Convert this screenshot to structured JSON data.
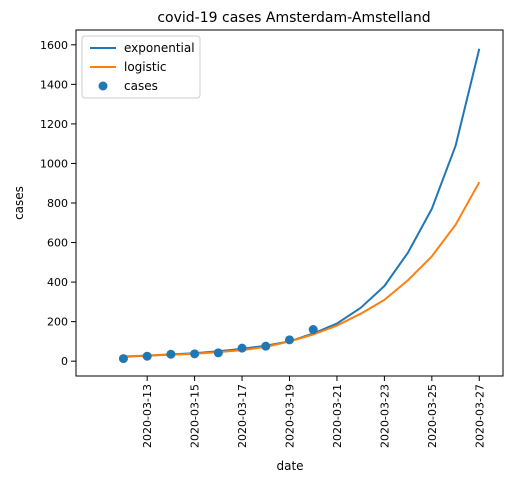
{
  "chart_data": {
    "type": "line",
    "title": "covid-19 cases Amsterdam-Amstelland",
    "xlabel": "date",
    "ylabel": "cases",
    "ylim": [
      -75,
      1675
    ],
    "xlim": [
      "2020-03-10",
      "2020-03-28"
    ],
    "grid": false,
    "legend": "top-left",
    "yticks": [
      0,
      200,
      400,
      600,
      800,
      1000,
      1200,
      1400,
      1600
    ],
    "xticks": [
      "2020-03-13",
      "2020-03-15",
      "2020-03-17",
      "2020-03-19",
      "2020-03-21",
      "2020-03-23",
      "2020-03-25",
      "2020-03-27"
    ],
    "series": [
      {
        "name": "exponential",
        "kind": "line",
        "color": "#1f77b4",
        "x": [
          "2020-03-12",
          "2020-03-13",
          "2020-03-14",
          "2020-03-15",
          "2020-03-16",
          "2020-03-17",
          "2020-03-18",
          "2020-03-19",
          "2020-03-20",
          "2020-03-21",
          "2020-03-22",
          "2020-03-23",
          "2020-03-24",
          "2020-03-25",
          "2020-03-26",
          "2020-03-27"
        ],
        "y": [
          22,
          28,
          34,
          40,
          50,
          62,
          78,
          100,
          140,
          190,
          270,
          380,
          550,
          770,
          1090,
          1580
        ]
      },
      {
        "name": "logistic",
        "kind": "line",
        "color": "#ff7f0e",
        "x": [
          "2020-03-12",
          "2020-03-13",
          "2020-03-14",
          "2020-03-15",
          "2020-03-16",
          "2020-03-17",
          "2020-03-18",
          "2020-03-19",
          "2020-03-20",
          "2020-03-21",
          "2020-03-22",
          "2020-03-23",
          "2020-03-24",
          "2020-03-25",
          "2020-03-26",
          "2020-03-27"
        ],
        "y": [
          24,
          28,
          32,
          38,
          46,
          56,
          72,
          100,
          135,
          180,
          240,
          310,
          410,
          530,
          690,
          905
        ]
      },
      {
        "name": "cases",
        "kind": "scatter",
        "color": "#1f77b4",
        "x": [
          "2020-03-12",
          "2020-03-13",
          "2020-03-14",
          "2020-03-15",
          "2020-03-16",
          "2020-03-17",
          "2020-03-18",
          "2020-03-19",
          "2020-03-20"
        ],
        "y": [
          13,
          25,
          35,
          37,
          42,
          66,
          76,
          108,
          160
        ]
      }
    ]
  }
}
